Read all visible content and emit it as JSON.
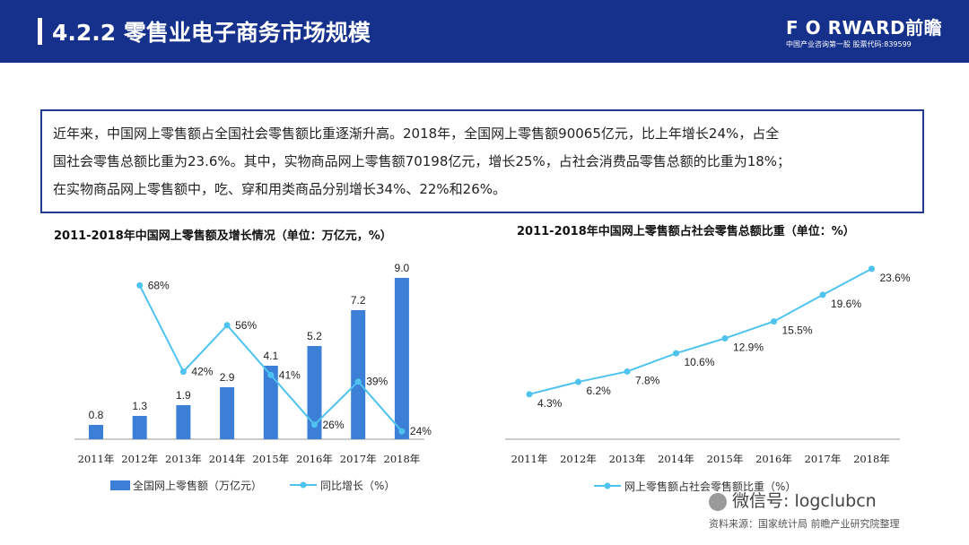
{
  "header": {
    "title": "4.2.2 零售业电子商务市场规模",
    "logo": "F O RWARD前瞻",
    "logo_sub": "中国产业咨询第一股 股票代码:839599",
    "colors": {
      "header_bg": "#16318c",
      "bar": "#3c7fd6",
      "line": "#4fc3ef"
    }
  },
  "summary": {
    "line1": "近年来，中国网上零售额占全国社会零售额比重逐渐升高。2018年，全国网上零售额90065亿元，比上年增长24%，占全",
    "line2": "国社会零售总额比重为23.6%。其中，实物商品网上零售额70198亿元，增长25%，占社会消费品零售总额的比重为18%；",
    "line3": "在实物商品网上零售额中，吃、穿和用类商品分别增长34%、22%和26%。"
  },
  "chart_data": [
    {
      "type": "bar",
      "title": "2011-2018年中国网上零售额及增长情况（单位：万亿元，%）",
      "categories": [
        "2011年",
        "2012年",
        "2013年",
        "2014年",
        "2015年",
        "2016年",
        "2017年",
        "2018年"
      ],
      "series": [
        {
          "name": "全国网上零售额（万亿元）",
          "type": "bar",
          "values": [
            0.8,
            1.3,
            1.9,
            2.9,
            4.1,
            5.2,
            7.2,
            9.0
          ],
          "labels": [
            "0.8",
            "1.3",
            "1.9",
            "2.9",
            "4.1",
            "5.2",
            "7.2",
            "9.0"
          ]
        },
        {
          "name": "同比增长（%）",
          "type": "line",
          "values": [
            null,
            68,
            42,
            56,
            41,
            26,
            39,
            24
          ],
          "labels": [
            "",
            "68%",
            "42%",
            "56%",
            "41%",
            "26%",
            "39%",
            "24%"
          ]
        }
      ],
      "legend_position": "bottom",
      "grid": false
    },
    {
      "type": "line",
      "title": "2011-2018年中国网上零售额占社会零售总额比重（单位：%）",
      "categories": [
        "2011年",
        "2012年",
        "2013年",
        "2014年",
        "2015年",
        "2016年",
        "2017年",
        "2018年"
      ],
      "series": [
        {
          "name": "网上零售额占社会零售额比重（%）",
          "values": [
            4.3,
            6.2,
            7.8,
            10.6,
            12.9,
            15.5,
            19.6,
            23.6
          ],
          "labels": [
            "4.3%",
            "6.2%",
            "7.8%",
            "10.6%",
            "12.9%",
            "15.5%",
            "19.6%",
            "23.6%"
          ]
        }
      ],
      "legend_position": "bottom",
      "grid": false
    }
  ],
  "watermark": "微信号: logclubcn",
  "source": "资料来源：国家统计局 前瞻产业研究院整理"
}
